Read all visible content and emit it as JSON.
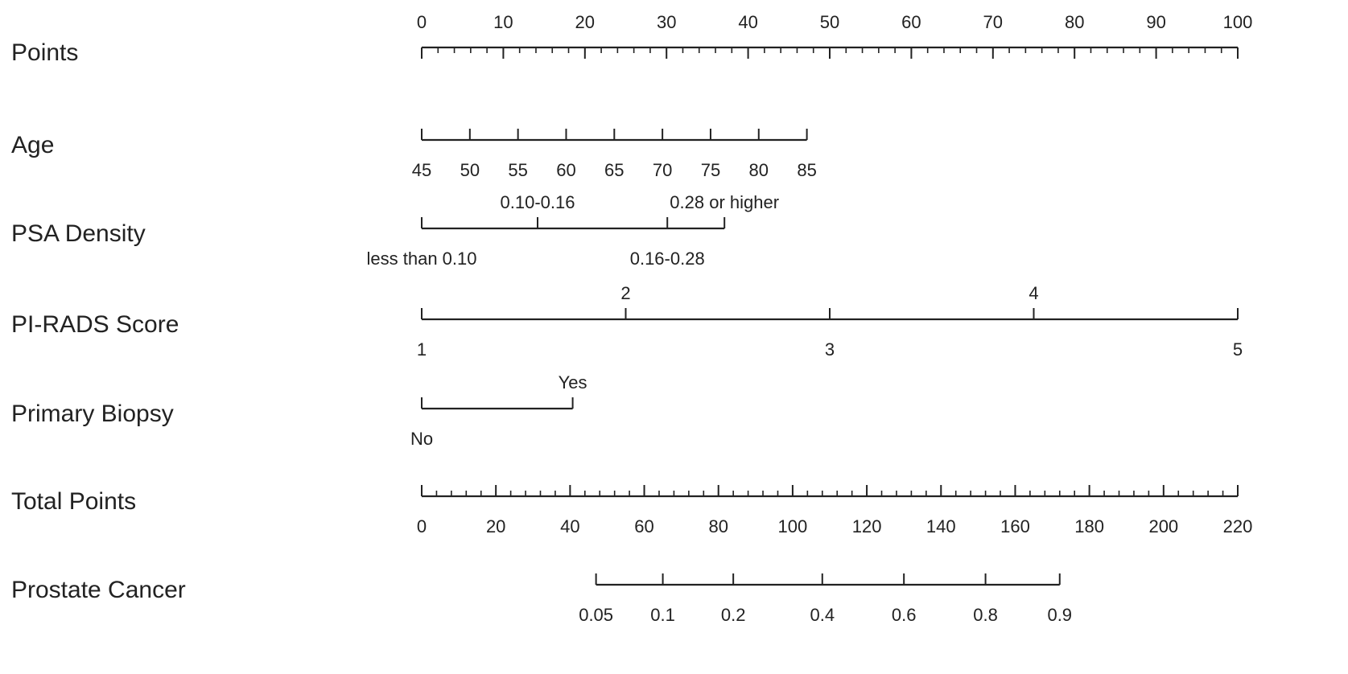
{
  "chart_data": {
    "type": "nomogram",
    "title": "",
    "points_range": [
      0,
      100
    ],
    "rows": [
      {
        "label": "Points",
        "kind": "points",
        "labels_position": "above",
        "ticks": [
          {
            "value": 0,
            "label": "0"
          },
          {
            "value": 10,
            "label": "10"
          },
          {
            "value": 20,
            "label": "20"
          },
          {
            "value": 30,
            "label": "30"
          },
          {
            "value": 40,
            "label": "40"
          },
          {
            "value": 50,
            "label": "50"
          },
          {
            "value": 60,
            "label": "60"
          },
          {
            "value": 70,
            "label": "70"
          },
          {
            "value": 80,
            "label": "80"
          },
          {
            "value": 90,
            "label": "90"
          },
          {
            "value": 100,
            "label": "100"
          }
        ],
        "minor_step": 2
      },
      {
        "label": "Age",
        "kind": "continuous",
        "labels_position": "below",
        "ticks": [
          {
            "value": "45",
            "points": 0
          },
          {
            "value": "50",
            "points": 5.9
          },
          {
            "value": "55",
            "points": 11.8
          },
          {
            "value": "60",
            "points": 17.7
          },
          {
            "value": "65",
            "points": 23.6
          },
          {
            "value": "70",
            "points": 29.5
          },
          {
            "value": "75",
            "points": 35.4
          },
          {
            "value": "80",
            "points": 41.3
          },
          {
            "value": "85",
            "points": 47.2
          }
        ]
      },
      {
        "label": "PSA Density",
        "kind": "categorical",
        "ticks": [
          {
            "value": "less than 0.10",
            "points": 0,
            "label_side": "below"
          },
          {
            "value": "0.10-0.16",
            "points": 14.2,
            "label_side": "above"
          },
          {
            "value": "0.16-0.28",
            "points": 30.1,
            "label_side": "below"
          },
          {
            "value": "0.28 or higher",
            "points": 37.1,
            "label_side": "above"
          }
        ]
      },
      {
        "label": "PI-RADS Score",
        "kind": "categorical",
        "ticks": [
          {
            "value": "1",
            "points": 0,
            "label_side": "below"
          },
          {
            "value": "2",
            "points": 25,
            "label_side": "above"
          },
          {
            "value": "3",
            "points": 50,
            "label_side": "below"
          },
          {
            "value": "4",
            "points": 75,
            "label_side": "above"
          },
          {
            "value": "5",
            "points": 100,
            "label_side": "below"
          }
        ]
      },
      {
        "label": "Primary Biopsy",
        "kind": "categorical",
        "ticks": [
          {
            "value": "No",
            "points": 0,
            "label_side": "below"
          },
          {
            "value": "Yes",
            "points": 18.5,
            "label_side": "above"
          }
        ]
      },
      {
        "label": "Total Points",
        "kind": "total",
        "labels_position": "below",
        "range": [
          0,
          220
        ],
        "ticks": [
          {
            "value": 0,
            "label": "0"
          },
          {
            "value": 20,
            "label": "20"
          },
          {
            "value": 40,
            "label": "40"
          },
          {
            "value": 60,
            "label": "60"
          },
          {
            "value": 80,
            "label": "80"
          },
          {
            "value": 100,
            "label": "100"
          },
          {
            "value": 120,
            "label": "120"
          },
          {
            "value": 140,
            "label": "140"
          },
          {
            "value": 160,
            "label": "160"
          },
          {
            "value": 180,
            "label": "180"
          },
          {
            "value": 200,
            "label": "200"
          },
          {
            "value": 220,
            "label": "220"
          }
        ],
        "minor_step": 4
      },
      {
        "label": "Prostate Cancer",
        "kind": "probability",
        "labels_position": "below",
        "ticks": [
          {
            "value": "0.05",
            "total_points": 47
          },
          {
            "value": "0.1",
            "total_points": 65
          },
          {
            "value": "0.2",
            "total_points": 84
          },
          {
            "value": "0.4",
            "total_points": 108
          },
          {
            "value": "0.6",
            "total_points": 130
          },
          {
            "value": "0.8",
            "total_points": 152
          },
          {
            "value": "0.9",
            "total_points": 172
          }
        ]
      }
    ]
  }
}
